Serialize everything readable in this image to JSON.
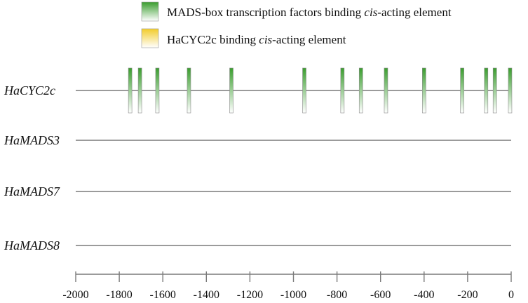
{
  "legend": [
    {
      "label_prefix": "MADS-box transcription factors binding ",
      "label_italic": "cis",
      "label_suffix": "-acting element",
      "color_top": "#3a9d2e",
      "color_bottom": "#ffffff"
    },
    {
      "label_prefix": "HaCYC2c binding ",
      "label_italic": "cis",
      "label_suffix": "-acting element",
      "color_top": "#f2cc2a",
      "color_bottom": "#ffffff"
    }
  ],
  "genes": [
    {
      "name": "HaCYC2c",
      "elements": [
        {
          "type": "MADS",
          "position": -1750
        },
        {
          "type": "MADS",
          "position": -1705
        },
        {
          "type": "MADS",
          "position": -1625
        },
        {
          "type": "MADS",
          "position": -1480
        },
        {
          "type": "MADS",
          "position": -1285
        },
        {
          "type": "MADS",
          "position": -950
        },
        {
          "type": "MADS",
          "position": -775
        },
        {
          "type": "MADS",
          "position": -690
        },
        {
          "type": "MADS",
          "position": -575
        },
        {
          "type": "MADS",
          "position": -400
        },
        {
          "type": "MADS",
          "position": -225
        },
        {
          "type": "MADS",
          "position": -115
        },
        {
          "type": "MADS",
          "position": -75
        },
        {
          "type": "MADS",
          "position": -5
        }
      ]
    },
    {
      "name": "HaMADS3",
      "elements": []
    },
    {
      "name": "HaMADS7",
      "elements": []
    },
    {
      "name": "HaMADS8",
      "elements": []
    }
  ],
  "axis": {
    "min": -2000,
    "max": 0,
    "ticks": [
      -2000,
      -1800,
      -1600,
      -1400,
      -1200,
      -1000,
      -800,
      -600,
      -400,
      -200,
      0
    ],
    "tick_labels": [
      "-2000",
      "-1800",
      "-1600",
      "-1400",
      "-1200",
      "-1000",
      "-800",
      "-600",
      "-400",
      "-200",
      "0"
    ]
  },
  "colors": {
    "line": "#7a7a7a",
    "mads_top": "#3a9d2e",
    "element_outline": "#8a8a8a"
  }
}
